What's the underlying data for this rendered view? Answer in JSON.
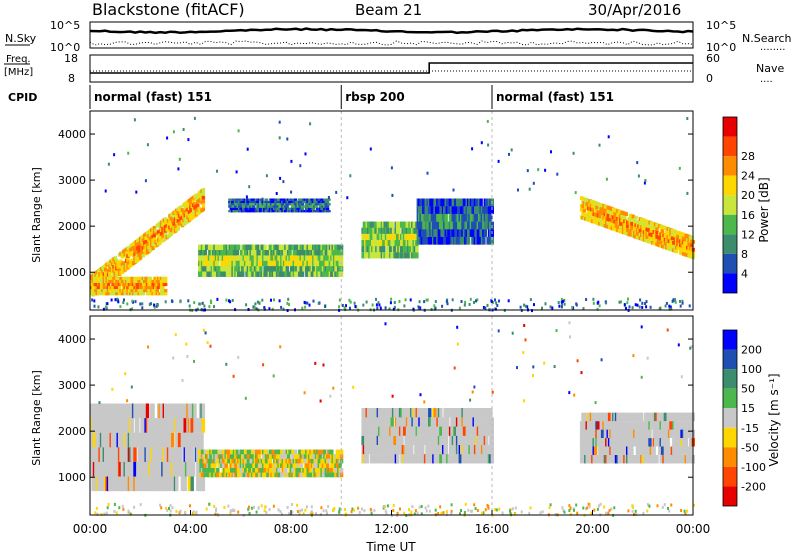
{
  "header": {
    "station": "Blackstone (fitACF)",
    "beam": "Beam 21",
    "date": "30/Apr/2016"
  },
  "noise_panel": {
    "left_label": "N.Sky",
    "right_label": "N.Search",
    "right_dotted": "........",
    "ticks": [
      "10^5",
      "10^0"
    ]
  },
  "freq_panel": {
    "left_label_1": "Freq.",
    "left_label_2": "[MHz]",
    "left_ticks": [
      "18",
      "8"
    ],
    "right_label": "Nave",
    "right_dotted": "....",
    "right_ticks": [
      "60",
      "0"
    ]
  },
  "cpid": {
    "label": "CPID",
    "segments": [
      {
        "label": "normal (fast) 151",
        "start_h": 0
      },
      {
        "label": "rbsp 200",
        "start_h": 10
      },
      {
        "label": "normal (fast) 151",
        "start_h": 16
      }
    ]
  },
  "colors": {
    "power_scale": [
      "#0000ff",
      "#1f4fb2",
      "#3c8c6e",
      "#4cb84c",
      "#c8e63c",
      "#ffd700",
      "#ff8c00",
      "#ff4500",
      "#e60000"
    ],
    "velocity_scale": [
      "#0000ff",
      "#1f4fb2",
      "#3c8c6e",
      "#4cb84c",
      "#c8c8c8",
      "#ffd700",
      "#ff8c00",
      "#ff4500",
      "#e60000"
    ]
  },
  "chart_data": [
    {
      "type": "heatmap",
      "name": "power",
      "xlabel": "",
      "ylabel": "Slant Range [km]",
      "xlim": [
        0,
        24
      ],
      "ylim": [
        180,
        4500
      ],
      "yticks": [
        1000,
        2000,
        3000,
        4000
      ],
      "colorbar": {
        "title": "Power [dB]",
        "ticks": [
          4,
          8,
          12,
          16,
          20,
          24,
          28
        ]
      },
      "features": [
        {
          "t": [
            0.0,
            4.5
          ],
          "range": [
            700,
            2600
          ],
          "level": "high",
          "shape": "rising-band"
        },
        {
          "t": [
            0.0,
            3.0
          ],
          "range": [
            500,
            900
          ],
          "level": "high"
        },
        {
          "t": [
            4.3,
            10.0
          ],
          "range": [
            900,
            1600
          ],
          "level": "medium"
        },
        {
          "t": [
            5.5,
            9.5
          ],
          "range": [
            2300,
            2600
          ],
          "level": "low"
        },
        {
          "t": [
            10.8,
            13.0
          ],
          "range": [
            1300,
            2100
          ],
          "level": "medium"
        },
        {
          "t": [
            13.0,
            16.0
          ],
          "range": [
            1600,
            2600
          ],
          "level": "low"
        },
        {
          "t": [
            19.5,
            24.0
          ],
          "range": [
            1300,
            2400
          ],
          "level": "high",
          "shape": "falling-band"
        }
      ]
    },
    {
      "type": "heatmap",
      "name": "velocity",
      "xlabel": "Time UT",
      "ylabel": "Slant Range [km]",
      "xlim": [
        0,
        24
      ],
      "ylim": [
        180,
        4500
      ],
      "xticks": [
        "00:00",
        "04:00",
        "08:00",
        "12:00",
        "16:00",
        "20:00",
        "00:00"
      ],
      "yticks": [
        1000,
        2000,
        3000,
        4000
      ],
      "colorbar": {
        "title": "Velocity [m s^-1]",
        "ticks": [
          200,
          100,
          50,
          15,
          -15,
          -50,
          -100,
          -200
        ]
      },
      "features": [
        {
          "t": [
            0.0,
            4.5
          ],
          "range": [
            700,
            2600
          ],
          "velocity": "near-zero"
        },
        {
          "t": [
            4.3,
            10.0
          ],
          "range": [
            1000,
            1600
          ],
          "velocity": "mixed -50 to 50"
        },
        {
          "t": [
            10.8,
            16.0
          ],
          "range": [
            1300,
            2500
          ],
          "velocity": "near-zero"
        },
        {
          "t": [
            19.5,
            24.0
          ],
          "range": [
            1300,
            2400
          ],
          "velocity": "near-zero"
        }
      ]
    }
  ]
}
